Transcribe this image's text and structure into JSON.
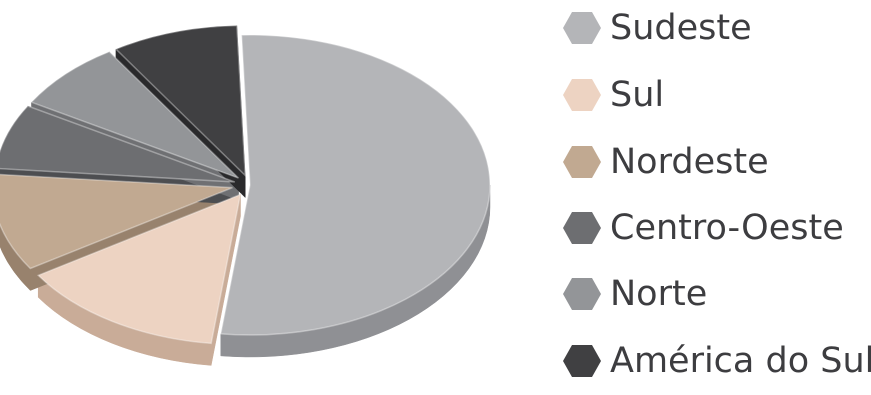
{
  "chart_data": {
    "type": "pie",
    "style": "3d",
    "title": "",
    "slices": [
      {
        "label": "Sudeste",
        "value": 52.5,
        "color": "#b4b5b8",
        "side": "#8f9094"
      },
      {
        "label": "Sul",
        "value": 14.0,
        "color": "#edd3c2",
        "side": "#c9ac98"
      },
      {
        "label": "Nordeste",
        "value": 10.5,
        "color": "#c1a991",
        "side": "#98826d"
      },
      {
        "label": "Centro-Oeste",
        "value": 7.0,
        "color": "#6d6e71",
        "side": "#4d4e51"
      },
      {
        "label": "Norte",
        "value": 7.5,
        "color": "#939598",
        "side": "#6f7073"
      },
      {
        "label": "América do Sul",
        "value": 8.5,
        "color": "#404042",
        "side": "#2a2a2c"
      }
    ],
    "legend": "right"
  }
}
